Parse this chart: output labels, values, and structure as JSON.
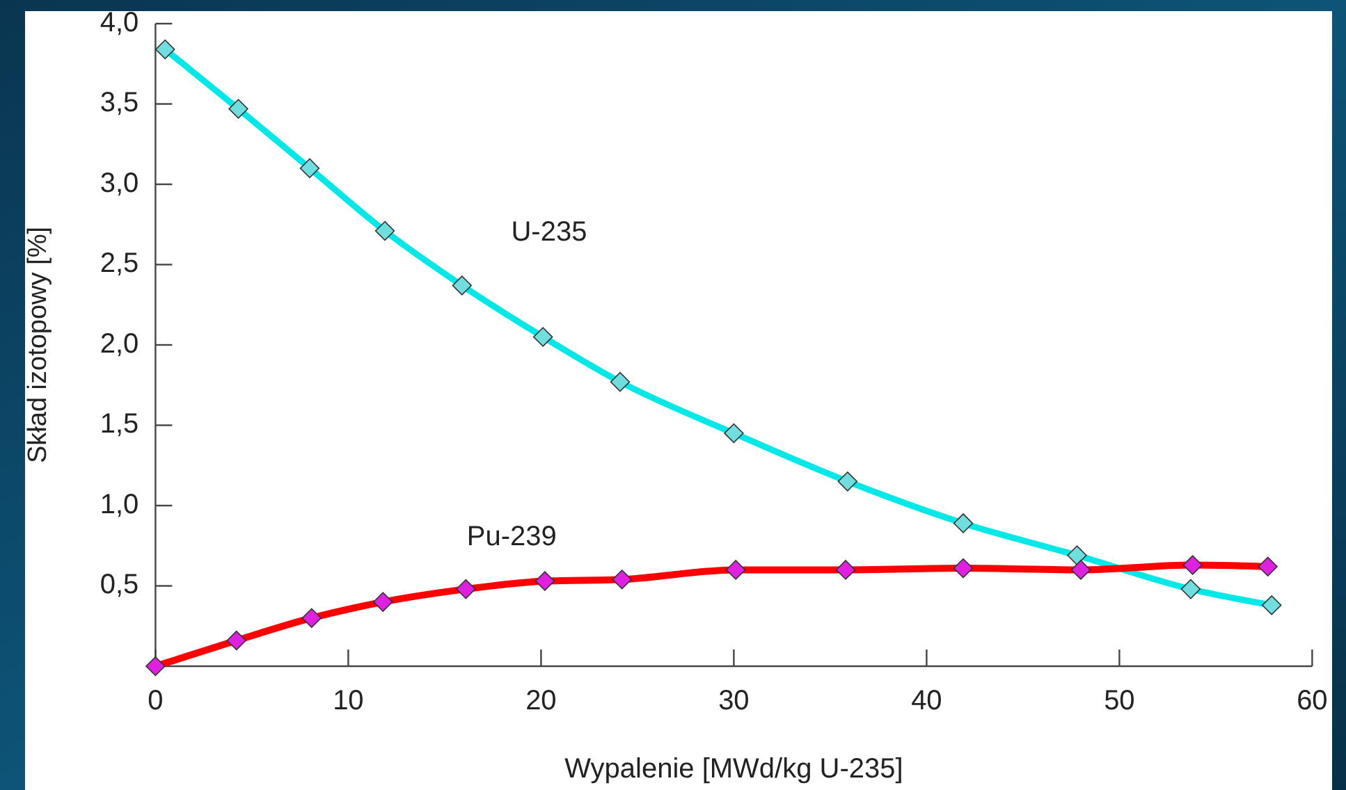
{
  "chart_data": {
    "type": "line",
    "xlabel": "Wypalenie [MWd/kg U-235]",
    "ylabel": "Skład izotopowy [%]",
    "xlim": [
      0,
      60
    ],
    "xticks": [
      0,
      10,
      20,
      30,
      40,
      50,
      60
    ],
    "ylim": [
      0,
      4
    ],
    "yticks": [
      {
        "value": 0.5,
        "label": "0,5"
      },
      {
        "value": 1,
        "label": "1,0"
      },
      {
        "value": 1.5,
        "label": "1,5"
      },
      {
        "value": 2,
        "label": "2,0"
      },
      {
        "value": 2.5,
        "label": "2,5"
      },
      {
        "value": 3,
        "label": "3,0"
      },
      {
        "value": 3.5,
        "label": "3,5"
      },
      {
        "value": 4,
        "label": "4,0"
      }
    ],
    "grid": false,
    "marker": "diamond",
    "line_style": "solid",
    "series": [
      {
        "name": "U-235",
        "color": "#00e8e8",
        "x": [
          0.5,
          4.3,
          8.0,
          11.9,
          15.9,
          20.1,
          24.1,
          30.0,
          35.9,
          41.9,
          47.8,
          53.7,
          57.9
        ],
        "values": [
          3.84,
          3.47,
          3.1,
          2.71,
          2.37,
          2.05,
          1.77,
          1.45,
          1.15,
          0.89,
          0.69,
          0.48,
          0.38
        ]
      },
      {
        "name": "Pu-239",
        "color": "#ff0000",
        "x": [
          0,
          4.2,
          8.1,
          11.8,
          16.1,
          20.2,
          24.2,
          30.1,
          35.8,
          41.9,
          48.0,
          53.8,
          57.7
        ],
        "values": [
          0,
          0.16,
          0.3,
          0.4,
          0.48,
          0.53,
          0.54,
          0.6,
          0.6,
          0.61,
          0.6,
          0.63,
          0.62
        ]
      }
    ]
  }
}
